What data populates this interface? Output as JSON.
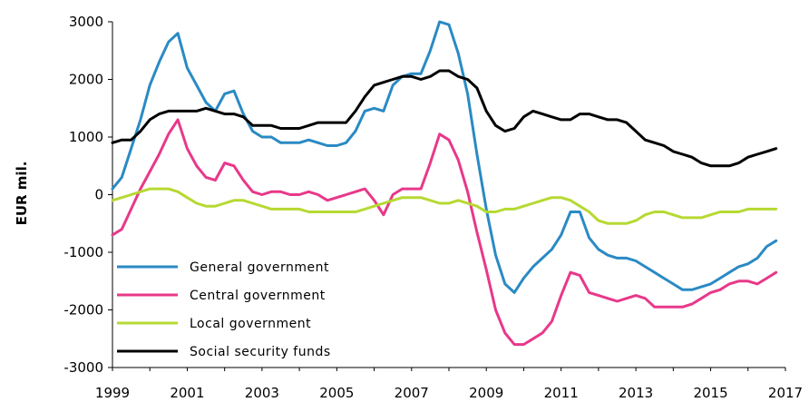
{
  "chart_data": {
    "type": "line",
    "title": "",
    "xlabel": "",
    "ylabel": "EUR mil.",
    "xlim": [
      1999,
      2017
    ],
    "ylim": [
      -3000,
      3000
    ],
    "x_ticks": [
      "1999",
      "2001",
      "2003",
      "2005",
      "2007",
      "2009",
      "2011",
      "2013",
      "2015",
      "2017"
    ],
    "y_ticks": [
      "3000",
      "2000",
      "1000",
      "0",
      "-1000",
      "-2000",
      "-3000"
    ],
    "grid": false,
    "legend_position": "bottom-left",
    "x": [
      1999.0,
      1999.25,
      1999.5,
      1999.75,
      2000.0,
      2000.25,
      2000.5,
      2000.75,
      2001.0,
      2001.25,
      2001.5,
      2001.75,
      2002.0,
      2002.25,
      2002.5,
      2002.75,
      2003.0,
      2003.25,
      2003.5,
      2003.75,
      2004.0,
      2004.25,
      2004.5,
      2004.75,
      2005.0,
      2005.25,
      2005.5,
      2005.75,
      2006.0,
      2006.25,
      2006.5,
      2006.75,
      2007.0,
      2007.25,
      2007.5,
      2007.75,
      2008.0,
      2008.25,
      2008.5,
      2008.75,
      2009.0,
      2009.25,
      2009.5,
      2009.75,
      2010.0,
      2010.25,
      2010.5,
      2010.75,
      2011.0,
      2011.25,
      2011.5,
      2011.75,
      2012.0,
      2012.25,
      2012.5,
      2012.75,
      2013.0,
      2013.25,
      2013.5,
      2013.75,
      2014.0,
      2014.25,
      2014.5,
      2014.75,
      2015.0,
      2015.25,
      2015.5,
      2015.75,
      2016.0,
      2016.25,
      2016.5,
      2016.75
    ],
    "series": [
      {
        "name": "General government",
        "color": "#2a8ac4",
        "values": [
          100,
          300,
          800,
          1300,
          1900,
          2300,
          2650,
          2800,
          2200,
          1900,
          1600,
          1450,
          1750,
          1800,
          1400,
          1100,
          1000,
          1000,
          900,
          900,
          900,
          950,
          900,
          850,
          850,
          900,
          1100,
          1450,
          1500,
          1450,
          1900,
          2050,
          2100,
          2100,
          2500,
          3000,
          2950,
          2450,
          1750,
          700,
          -250,
          -1050,
          -1550,
          -1700,
          -1450,
          -1250,
          -1100,
          -950,
          -700,
          -300,
          -300,
          -750,
          -950,
          -1050,
          -1100,
          -1100,
          -1150,
          -1250,
          -1350,
          -1450,
          -1550,
          -1650,
          -1650,
          -1600,
          -1550,
          -1450,
          -1350,
          -1250,
          -1200,
          -1100,
          -900,
          -800
        ]
      },
      {
        "name": "Central government",
        "color": "#e8388a",
        "values": [
          -700,
          -600,
          -250,
          100,
          400,
          700,
          1050,
          1300,
          800,
          500,
          300,
          250,
          550,
          500,
          250,
          50,
          0,
          50,
          50,
          0,
          0,
          50,
          0,
          -100,
          -50,
          0,
          50,
          100,
          -100,
          -350,
          0,
          100,
          100,
          100,
          550,
          1050,
          950,
          600,
          50,
          -650,
          -1300,
          -2000,
          -2400,
          -2600,
          -2600,
          -2500,
          -2400,
          -2200,
          -1750,
          -1350,
          -1400,
          -1700,
          -1750,
          -1800,
          -1850,
          -1800,
          -1750,
          -1800,
          -1950,
          -1950,
          -1950,
          -1950,
          -1900,
          -1800,
          -1700,
          -1650,
          -1550,
          -1500,
          -1500,
          -1550,
          -1450,
          -1350
        ]
      },
      {
        "name": "Local government",
        "color": "#b6d932",
        "values": [
          -100,
          -50,
          0,
          50,
          100,
          100,
          100,
          50,
          -50,
          -150,
          -200,
          -200,
          -150,
          -100,
          -100,
          -150,
          -200,
          -250,
          -250,
          -250,
          -250,
          -300,
          -300,
          -300,
          -300,
          -300,
          -300,
          -250,
          -200,
          -150,
          -100,
          -50,
          -50,
          -50,
          -100,
          -150,
          -150,
          -100,
          -150,
          -200,
          -300,
          -300,
          -250,
          -250,
          -200,
          -150,
          -100,
          -50,
          -50,
          -100,
          -200,
          -300,
          -450,
          -500,
          -500,
          -500,
          -450,
          -350,
          -300,
          -300,
          -350,
          -400,
          -400,
          -400,
          -350,
          -300,
          -300,
          -300,
          -250,
          -250,
          -250,
          -250
        ]
      },
      {
        "name": "Social security funds",
        "color": "#000000",
        "values": [
          900,
          950,
          950,
          1100,
          1300,
          1400,
          1450,
          1450,
          1450,
          1450,
          1500,
          1450,
          1400,
          1400,
          1350,
          1200,
          1200,
          1200,
          1150,
          1150,
          1150,
          1200,
          1250,
          1250,
          1250,
          1250,
          1450,
          1700,
          1900,
          1950,
          2000,
          2050,
          2050,
          2000,
          2050,
          2150,
          2150,
          2050,
          2000,
          1850,
          1450,
          1200,
          1100,
          1150,
          1350,
          1450,
          1400,
          1350,
          1300,
          1300,
          1400,
          1400,
          1350,
          1300,
          1300,
          1250,
          1100,
          950,
          900,
          850,
          750,
          700,
          650,
          550,
          500,
          500,
          500,
          550,
          650,
          700,
          750,
          800
        ]
      }
    ]
  }
}
